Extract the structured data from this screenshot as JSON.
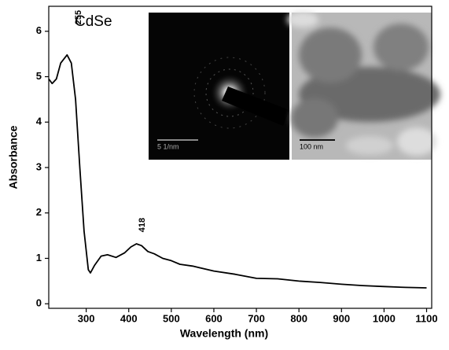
{
  "chart_data": {
    "type": "line",
    "x_label": "Wavelength (nm)",
    "y_label": "Absorbance",
    "annotations": [
      "CdSe",
      "255",
      "418",
      "5 1/nm",
      "100 nm"
    ],
    "x": [
      212,
      220,
      230,
      240,
      255,
      265,
      275,
      285,
      295,
      305,
      310,
      320,
      335,
      350,
      370,
      390,
      405,
      418,
      430,
      445,
      460,
      480,
      500,
      520,
      550,
      600,
      650,
      700,
      750,
      800,
      850,
      900,
      950,
      1000,
      1050,
      1100
    ],
    "values": [
      4.95,
      4.85,
      4.95,
      5.3,
      5.48,
      5.3,
      4.5,
      3.0,
      1.6,
      0.75,
      0.68,
      0.85,
      1.05,
      1.08,
      1.02,
      1.12,
      1.25,
      1.32,
      1.28,
      1.15,
      1.1,
      1.0,
      0.95,
      0.87,
      0.83,
      0.72,
      0.65,
      0.56,
      0.55,
      0.5,
      0.47,
      0.43,
      0.4,
      0.38,
      0.36,
      0.35
    ],
    "color": "#000000",
    "xlim": [
      212,
      1112
    ],
    "ylim": [
      -0.1,
      6.55
    ],
    "xticks": [
      300,
      400,
      500,
      600,
      700,
      800,
      900,
      1000,
      1100
    ],
    "yticks": [
      0,
      1,
      2,
      3,
      4,
      5,
      6
    ]
  }
}
